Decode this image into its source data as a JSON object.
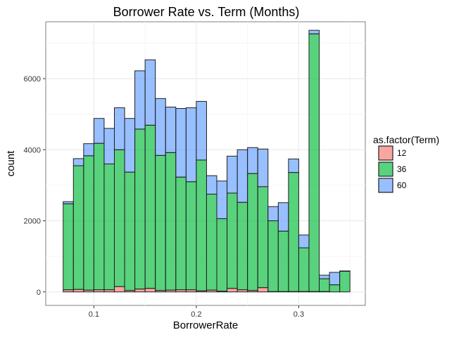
{
  "chart_data": {
    "type": "bar",
    "stacked": true,
    "title": "Borrower Rate vs. Term (Months)",
    "xlabel": "BorrowerRate",
    "ylabel": "count",
    "xlim": [
      0.053,
      0.365
    ],
    "ylim": [
      -380,
      7600
    ],
    "xticks": [
      0.1,
      0.2,
      0.3
    ],
    "xtick_labels": [
      "0.1",
      "0.2",
      "0.3"
    ],
    "yticks": [
      0,
      2000,
      4000,
      6000
    ],
    "ytick_labels": [
      "0",
      "2000",
      "4000",
      "6000"
    ],
    "bin_width": 0.01,
    "bin_starts": [
      0.07,
      0.08,
      0.09,
      0.1,
      0.11,
      0.12,
      0.13,
      0.14,
      0.15,
      0.16,
      0.17,
      0.18,
      0.19,
      0.2,
      0.21,
      0.22,
      0.23,
      0.24,
      0.25,
      0.26,
      0.27,
      0.28,
      0.29,
      0.3,
      0.31,
      0.32,
      0.33,
      0.34
    ],
    "series": [
      {
        "name": "12",
        "color": "#F8766D",
        "values": [
          60,
          70,
          50,
          60,
          60,
          150,
          40,
          80,
          100,
          40,
          50,
          60,
          60,
          30,
          50,
          20,
          100,
          60,
          40,
          120,
          10,
          10,
          10,
          10,
          10,
          10,
          0,
          0
        ]
      },
      {
        "name": "36",
        "color": "#00BA38",
        "values": [
          2420,
          3480,
          3780,
          4120,
          3540,
          3850,
          3330,
          4500,
          4590,
          3800,
          3870,
          3170,
          3040,
          3680,
          2700,
          2040,
          2680,
          2460,
          3290,
          2840,
          1990,
          1700,
          3350,
          1230,
          7250,
          360,
          200,
          580
        ]
      },
      {
        "name": "60",
        "color": "#619CFF",
        "values": [
          60,
          200,
          340,
          700,
          1000,
          1180,
          1510,
          1640,
          1840,
          1600,
          1280,
          1930,
          2080,
          1650,
          520,
          1060,
          1040,
          1480,
          730,
          1060,
          400,
          800,
          380,
          360,
          100,
          100,
          350,
          10
        ]
      }
    ],
    "legend": {
      "title": "as.factor(Term)",
      "position": "right"
    },
    "grid": true
  }
}
